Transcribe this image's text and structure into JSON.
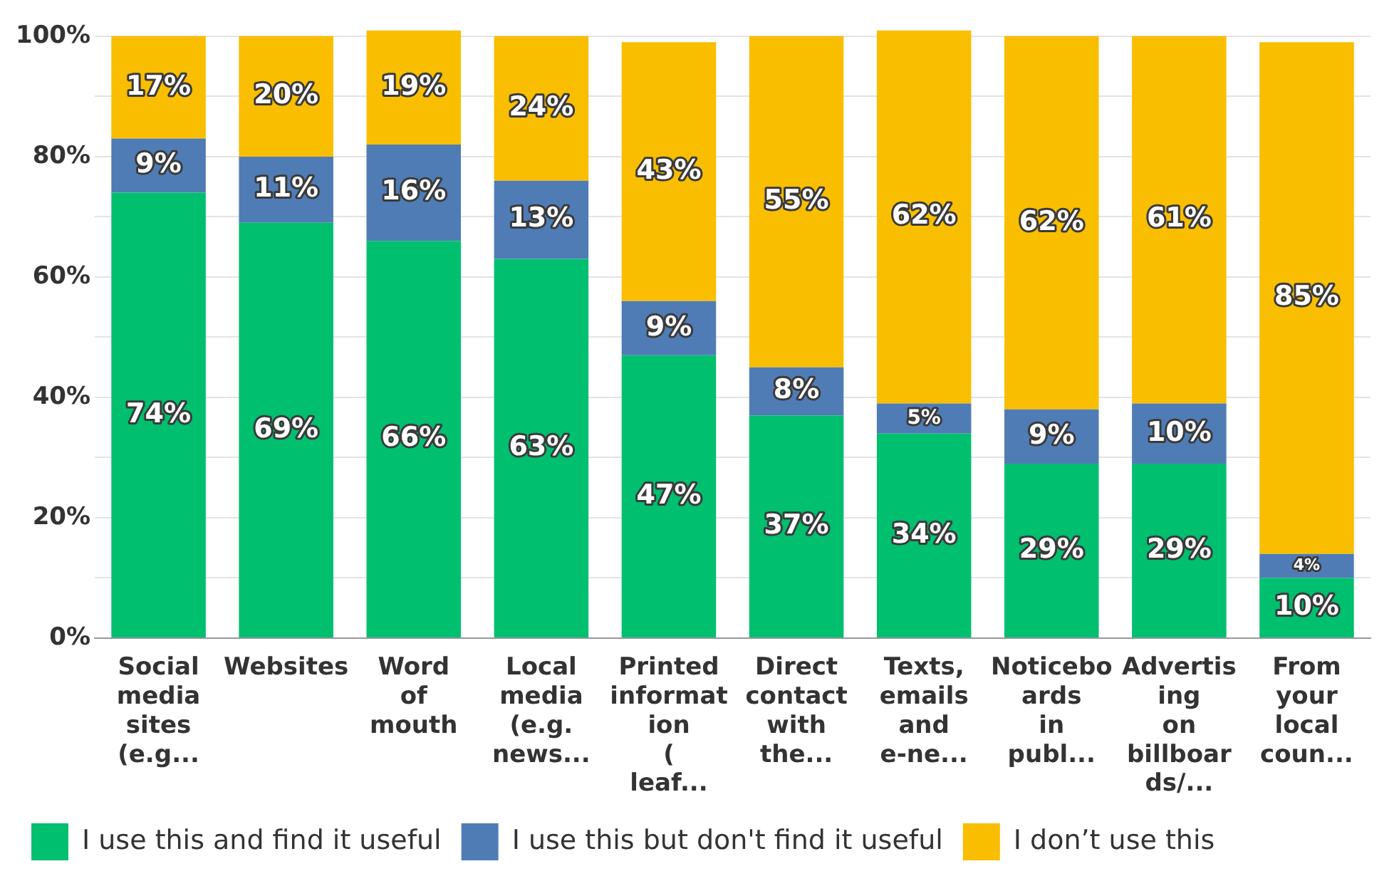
{
  "chart_data": {
    "type": "bar",
    "stacked": true,
    "categories": [
      "Social media sites (e.g...",
      "Websites",
      "Word of mouth",
      "Local media (e.g. news...",
      "Printed information ( leaf...",
      "Direct contact with the...",
      "Texts, emails and e-ne...",
      "Noticeboards in publ...",
      "Advertising on billboards/...",
      "From your local coun..."
    ],
    "series": [
      {
        "name": "I use this and find it useful",
        "color": "#00bf6f",
        "values": [
          74,
          69,
          66,
          63,
          47,
          37,
          34,
          29,
          29,
          10
        ],
        "value_labels": [
          "74%",
          "69%",
          "66%",
          "63%",
          "47%",
          "37%",
          "34%",
          "29%",
          "29%",
          "10%"
        ]
      },
      {
        "name": "I use this but don't find it useful",
        "color": "#507cb6",
        "values": [
          9,
          11,
          16,
          13,
          9,
          8,
          5,
          9,
          10,
          4
        ],
        "value_labels": [
          "9%",
          "11%",
          "16%",
          "13%",
          "9%",
          "8%",
          "5%",
          "9%",
          "10%",
          "4%"
        ]
      },
      {
        "name": "I don’t use this",
        "color": "#f9be00",
        "values": [
          17,
          20,
          19,
          24,
          43,
          55,
          62,
          62,
          61,
          85
        ],
        "value_labels": [
          "17%",
          "20%",
          "19%",
          "24%",
          "43%",
          "55%",
          "62%",
          "62%",
          "61%",
          "85%"
        ]
      }
    ],
    "ylim": [
      0,
      101
    ],
    "yticks": [
      {
        "value": 0,
        "label": "0%"
      },
      {
        "value": 10,
        "label": null
      },
      {
        "value": 20,
        "label": "20%"
      },
      {
        "value": 30,
        "label": null
      },
      {
        "value": 40,
        "label": "40%"
      },
      {
        "value": 50,
        "label": null
      },
      {
        "value": 60,
        "label": "60%"
      },
      {
        "value": 70,
        "label": null
      },
      {
        "value": 80,
        "label": "80%"
      },
      {
        "value": 90,
        "label": null
      },
      {
        "value": 100,
        "label": "100%"
      }
    ],
    "grid": "y",
    "legend": "bottom left"
  }
}
